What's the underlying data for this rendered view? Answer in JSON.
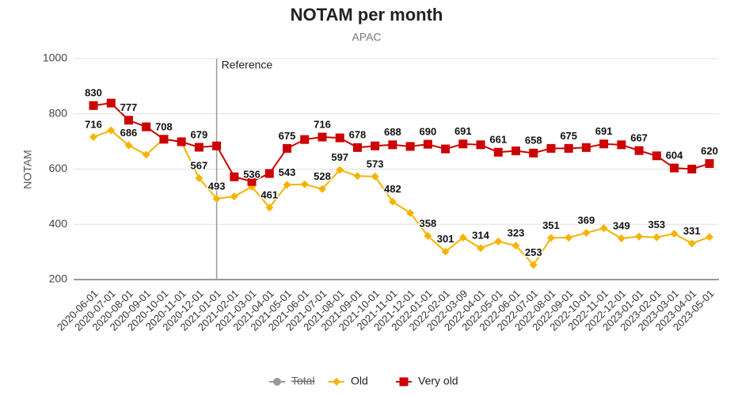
{
  "chart_data": {
    "type": "line",
    "title": "NOTAM per month",
    "subtitle": "APAC",
    "y_label": "NOTAM",
    "categories": [
      "2020-06-01",
      "2020-07-01",
      "2020-08-01",
      "2020-09-01",
      "2020-10-01",
      "2020-11-01",
      "2020-12-01",
      "2021-01-01",
      "2021-02-01",
      "2021-03-01",
      "2021-04-01",
      "2021-05-01",
      "2021-06-01",
      "2021-07-01",
      "2021-08-01",
      "2021-09-01",
      "2021-10-01",
      "2021-11-01",
      "2021-12-01",
      "2022-01-01",
      "2022-02-01",
      "2022-03-09",
      "2022-04-01",
      "2022-05-01",
      "2022-06-01",
      "2022-07-01",
      "2022-08-01",
      "2022-09-01",
      "2022-10-01",
      "2022-11-01",
      "2022-12-01",
      "2023-01-01",
      "2023-02-01",
      "2023-03-01",
      "2023-04-01",
      "2023-05-01"
    ],
    "series": [
      {
        "name": "Total",
        "color": "#666666",
        "marker": "circle",
        "hidden": true,
        "values": [
          null,
          null,
          null,
          null,
          null,
          null,
          null,
          null,
          null,
          null,
          null,
          null,
          null,
          null,
          null,
          null,
          null,
          null,
          null,
          null,
          null,
          null,
          null,
          null,
          null,
          null,
          null,
          null,
          null,
          null,
          null,
          null,
          null,
          null,
          null,
          null
        ]
      },
      {
        "name": "Old",
        "color": "#f5b400",
        "marker": "diamond",
        "values": [
          716,
          740,
          686,
          652,
          710,
          698,
          567,
          493,
          501,
          536,
          461,
          543,
          545,
          528,
          597,
          575,
          573,
          482,
          441,
          358,
          301,
          352,
          314,
          338,
          323,
          253,
          351,
          352,
          369,
          386,
          349,
          356,
          353,
          366,
          331,
          354
        ],
        "value_labels": [
          "716",
          null,
          "686",
          null,
          null,
          null,
          "567",
          "493",
          null,
          "536",
          "461",
          "543",
          null,
          "528",
          "597",
          null,
          "573",
          "482",
          null,
          "358",
          "301",
          null,
          "314",
          null,
          "323",
          "253",
          "351",
          null,
          "369",
          null,
          "349",
          null,
          "353",
          null,
          "331",
          null
        ]
      },
      {
        "name": "Very old",
        "color": "#cc0000",
        "marker": "square",
        "values": [
          830,
          839,
          777,
          753,
          708,
          699,
          679,
          684,
          572,
          555,
          584,
          675,
          707,
          716,
          713,
          678,
          684,
          688,
          682,
          690,
          673,
          691,
          688,
          661,
          666,
          658,
          675,
          675,
          678,
          691,
          688,
          667,
          648,
          604,
          600,
          620
        ],
        "value_labels": [
          "830",
          null,
          "777",
          null,
          "708",
          null,
          "679",
          null,
          null,
          null,
          null,
          "675",
          null,
          "716",
          null,
          "678",
          null,
          "688",
          null,
          "690",
          null,
          "691",
          null,
          "661",
          null,
          "658",
          null,
          "675",
          null,
          "691",
          null,
          "667",
          null,
          "604",
          null,
          "620"
        ]
      }
    ],
    "annotation": {
      "text": "Reference",
      "x": "2021-01-01"
    },
    "ylim": [
      200,
      1000
    ],
    "yticks": [
      200,
      400,
      600,
      800,
      1000
    ],
    "grid": true,
    "legend": "bottom"
  }
}
